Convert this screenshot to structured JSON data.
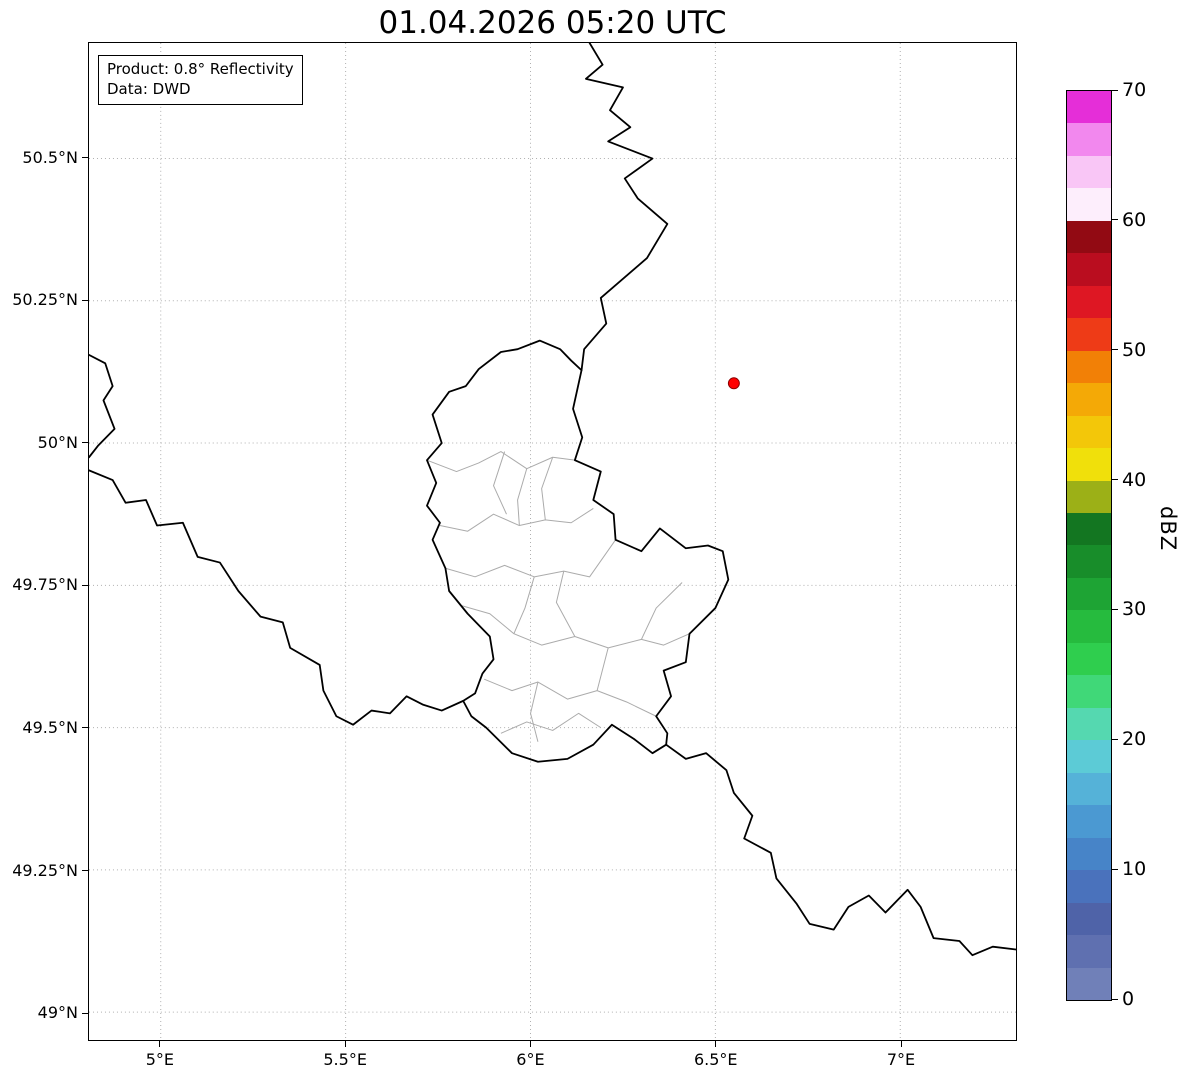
{
  "title": "01.04.2026 05:20 UTC",
  "annotation": {
    "line1": "Product: 0.8° Reflectivity",
    "line2": "Data: DWD"
  },
  "axes": {
    "lon_range": [
      4.806,
      7.313
    ],
    "lat_range": [
      48.951,
      50.703
    ],
    "lon_ticks": [
      {
        "value": 5.0,
        "label": "5°E"
      },
      {
        "value": 5.5,
        "label": "5.5°E"
      },
      {
        "value": 6.0,
        "label": "6°E"
      },
      {
        "value": 6.5,
        "label": "6.5°E"
      },
      {
        "value": 7.0,
        "label": "7°E"
      }
    ],
    "lat_ticks": [
      {
        "value": 49.0,
        "label": "49°N"
      },
      {
        "value": 49.25,
        "label": "49.25°N"
      },
      {
        "value": 49.5,
        "label": "49.5°N"
      },
      {
        "value": 49.75,
        "label": "49.75°N"
      },
      {
        "value": 50.0,
        "label": "50°N"
      },
      {
        "value": 50.25,
        "label": "50.25°N"
      },
      {
        "value": 50.5,
        "label": "50.5°N"
      }
    ]
  },
  "colorbar": {
    "label": "dBZ",
    "min": 0,
    "max": 70,
    "ticks": [
      {
        "value": 0,
        "label": "0"
      },
      {
        "value": 10,
        "label": "10"
      },
      {
        "value": 20,
        "label": "20"
      },
      {
        "value": 30,
        "label": "30"
      },
      {
        "value": 40,
        "label": "40"
      },
      {
        "value": 50,
        "label": "50"
      },
      {
        "value": 60,
        "label": "60"
      },
      {
        "value": 70,
        "label": "70"
      }
    ],
    "colors": [
      "#7080b8",
      "#5f70b0",
      "#4f63a8",
      "#4a72bc",
      "#4784c8",
      "#4b99d2",
      "#55b2d8",
      "#5ccbd6",
      "#55d8b0",
      "#40d878",
      "#2fce4e",
      "#26bb3e",
      "#1ea434",
      "#188d2a",
      "#137621",
      "#9cb017",
      "#f0e00b",
      "#f3c709",
      "#f4a906",
      "#f28006",
      "#ee3b17",
      "#de1723",
      "#ba0d1f",
      "#920a13",
      "#fdeefc",
      "#f9c6f6",
      "#f288ee",
      "#e52ed8"
    ]
  },
  "style": {
    "grid_color": "#b0b0b0",
    "national_border_color": "#000000",
    "regional_border_color": "#ababab",
    "background": "#ffffff"
  },
  "chart_data": {
    "type": "map",
    "marker": {
      "name": "radar-site",
      "lon": 6.55,
      "lat": 50.105,
      "color": "#ff0000"
    },
    "borders": {
      "national": [
        [
          [
            6.138,
            50.128
          ],
          [
            6.115,
            50.06
          ],
          [
            6.14,
            50.01
          ],
          [
            6.12,
            49.97
          ],
          [
            6.19,
            49.95
          ],
          [
            6.17,
            49.9
          ],
          [
            6.225,
            49.875
          ],
          [
            6.23,
            49.83
          ],
          [
            6.3,
            49.81
          ],
          [
            6.35,
            49.85
          ],
          [
            6.42,
            49.815
          ],
          [
            6.48,
            49.82
          ],
          [
            6.52,
            49.81
          ],
          [
            6.535,
            49.76
          ],
          [
            6.5,
            49.71
          ],
          [
            6.43,
            49.665
          ],
          [
            6.42,
            49.615
          ],
          [
            6.36,
            49.6
          ],
          [
            6.38,
            49.555
          ],
          [
            6.34,
            49.52
          ],
          [
            6.37,
            49.49
          ],
          [
            6.367,
            49.47
          ],
          [
            6.33,
            49.455
          ],
          [
            6.28,
            49.48
          ],
          [
            6.22,
            49.505
          ],
          [
            6.17,
            49.47
          ],
          [
            6.1,
            49.445
          ],
          [
            6.02,
            49.44
          ],
          [
            5.95,
            49.455
          ],
          [
            5.88,
            49.5
          ],
          [
            5.84,
            49.52
          ],
          [
            5.818,
            49.547
          ],
          [
            5.85,
            49.56
          ],
          [
            5.87,
            49.595
          ],
          [
            5.9,
            49.62
          ],
          [
            5.89,
            49.66
          ],
          [
            5.83,
            49.7
          ],
          [
            5.78,
            49.74
          ],
          [
            5.77,
            49.78
          ],
          [
            5.735,
            49.83
          ],
          [
            5.755,
            49.86
          ],
          [
            5.72,
            49.89
          ],
          [
            5.745,
            49.93
          ],
          [
            5.72,
            49.97
          ],
          [
            5.76,
            50.0
          ],
          [
            5.735,
            50.05
          ],
          [
            5.78,
            50.09
          ],
          [
            5.825,
            50.1
          ],
          [
            5.86,
            50.13
          ],
          [
            5.92,
            50.16
          ],
          [
            5.965,
            50.165
          ],
          [
            6.025,
            50.18
          ],
          [
            6.08,
            50.165
          ],
          [
            6.11,
            50.145
          ],
          [
            6.138,
            50.128
          ]
        ],
        [
          [
            6.16,
            50.703
          ],
          [
            6.195,
            50.665
          ],
          [
            6.15,
            50.64
          ],
          [
            6.25,
            50.625
          ],
          [
            6.215,
            50.585
          ],
          [
            6.27,
            50.555
          ],
          [
            6.21,
            50.53
          ],
          [
            6.33,
            50.5
          ],
          [
            6.255,
            50.465
          ],
          [
            6.29,
            50.43
          ],
          [
            6.37,
            50.385
          ],
          [
            6.315,
            50.325
          ],
          [
            6.19,
            50.255
          ],
          [
            6.205,
            50.21
          ],
          [
            6.145,
            50.165
          ],
          [
            6.138,
            50.128
          ]
        ],
        [
          [
            6.367,
            49.47
          ],
          [
            6.42,
            49.445
          ],
          [
            6.475,
            49.455
          ],
          [
            6.53,
            49.425
          ],
          [
            6.55,
            49.385
          ],
          [
            6.6,
            49.345
          ],
          [
            6.578,
            49.305
          ],
          [
            6.65,
            49.28
          ],
          [
            6.665,
            49.235
          ],
          [
            6.72,
            49.19
          ],
          [
            6.755,
            49.155
          ],
          [
            6.82,
            49.145
          ],
          [
            6.86,
            49.185
          ],
          [
            6.915,
            49.205
          ],
          [
            6.96,
            49.175
          ],
          [
            7.02,
            49.215
          ],
          [
            7.055,
            49.185
          ],
          [
            7.09,
            49.13
          ],
          [
            7.16,
            49.125
          ],
          [
            7.195,
            49.1
          ],
          [
            7.25,
            49.115
          ],
          [
            7.313,
            49.11
          ]
        ],
        [
          [
            4.806,
            49.952
          ],
          [
            4.87,
            49.935
          ],
          [
            4.905,
            49.895
          ],
          [
            4.96,
            49.9
          ],
          [
            4.99,
            49.855
          ],
          [
            5.06,
            49.86
          ],
          [
            5.1,
            49.8
          ],
          [
            5.16,
            49.79
          ],
          [
            5.21,
            49.74
          ],
          [
            5.27,
            49.695
          ],
          [
            5.33,
            49.685
          ],
          [
            5.35,
            49.64
          ],
          [
            5.43,
            49.61
          ],
          [
            5.44,
            49.565
          ],
          [
            5.475,
            49.52
          ],
          [
            5.52,
            49.505
          ],
          [
            5.57,
            49.53
          ],
          [
            5.62,
            49.525
          ],
          [
            5.665,
            49.555
          ],
          [
            5.71,
            49.54
          ],
          [
            5.76,
            49.53
          ],
          [
            5.818,
            49.547
          ]
        ],
        [
          [
            4.806,
            50.155
          ],
          [
            4.85,
            50.14
          ],
          [
            4.87,
            50.1
          ],
          [
            4.845,
            50.075
          ],
          [
            4.875,
            50.025
          ],
          [
            4.83,
            49.995
          ],
          [
            4.806,
            49.975
          ]
        ]
      ],
      "regional": [
        [
          [
            5.72,
            49.97
          ],
          [
            5.8,
            49.95
          ],
          [
            5.86,
            49.965
          ],
          [
            5.92,
            49.985
          ],
          [
            5.99,
            49.955
          ],
          [
            6.06,
            49.975
          ],
          [
            6.12,
            49.97
          ]
        ],
        [
          [
            5.755,
            49.855
          ],
          [
            5.83,
            49.845
          ],
          [
            5.9,
            49.875
          ],
          [
            5.97,
            49.855
          ],
          [
            6.04,
            49.865
          ],
          [
            6.11,
            49.86
          ],
          [
            6.17,
            49.885
          ]
        ],
        [
          [
            5.77,
            49.78
          ],
          [
            5.85,
            49.765
          ],
          [
            5.93,
            49.785
          ],
          [
            6.01,
            49.765
          ],
          [
            6.09,
            49.775
          ],
          [
            6.16,
            49.765
          ],
          [
            6.23,
            49.83
          ]
        ],
        [
          [
            5.81,
            49.715
          ],
          [
            5.89,
            49.7
          ],
          [
            5.955,
            49.665
          ],
          [
            6.03,
            49.645
          ],
          [
            6.12,
            49.66
          ],
          [
            6.21,
            49.64
          ],
          [
            6.3,
            49.655
          ],
          [
            6.36,
            49.645
          ],
          [
            6.43,
            49.665
          ]
        ],
        [
          [
            5.875,
            49.585
          ],
          [
            5.95,
            49.565
          ],
          [
            6.02,
            49.58
          ],
          [
            6.1,
            49.55
          ],
          [
            6.18,
            49.565
          ],
          [
            6.26,
            49.545
          ],
          [
            6.34,
            49.52
          ]
        ],
        [
          [
            5.92,
            49.49
          ],
          [
            5.99,
            49.51
          ],
          [
            6.06,
            49.495
          ],
          [
            6.13,
            49.525
          ],
          [
            6.19,
            49.5
          ]
        ],
        [
          [
            5.93,
            49.985
          ],
          [
            5.9,
            49.925
          ],
          [
            5.935,
            49.875
          ]
        ],
        [
          [
            5.99,
            49.955
          ],
          [
            5.965,
            49.9
          ],
          [
            5.97,
            49.855
          ]
        ],
        [
          [
            6.06,
            49.975
          ],
          [
            6.03,
            49.92
          ],
          [
            6.04,
            49.865
          ]
        ],
        [
          [
            6.01,
            49.765
          ],
          [
            5.985,
            49.71
          ],
          [
            5.955,
            49.665
          ]
        ],
        [
          [
            6.09,
            49.775
          ],
          [
            6.07,
            49.72
          ],
          [
            6.12,
            49.66
          ]
        ],
        [
          [
            6.21,
            49.64
          ],
          [
            6.19,
            49.59
          ],
          [
            6.18,
            49.565
          ]
        ],
        [
          [
            6.02,
            49.58
          ],
          [
            6.0,
            49.525
          ],
          [
            6.02,
            49.475
          ]
        ],
        [
          [
            6.3,
            49.655
          ],
          [
            6.34,
            49.71
          ],
          [
            6.41,
            49.755
          ]
        ]
      ]
    }
  }
}
